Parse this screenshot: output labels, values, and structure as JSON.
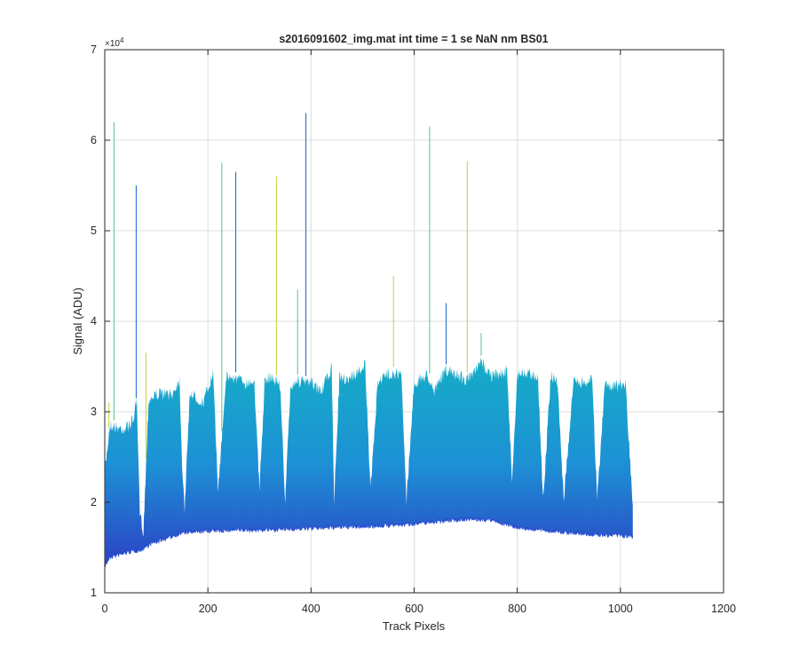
{
  "chart_data": {
    "type": "area",
    "title": "s2016091602_img.mat int time = 1 se  NaN nm BS01",
    "xlabel": "Track Pixels",
    "ylabel": "Signal (ADU)",
    "xlim": [
      0,
      1200
    ],
    "ylim": [
      10000,
      70000
    ],
    "x_ticks": [
      0,
      200,
      400,
      600,
      800,
      1000,
      1200
    ],
    "y_ticks": [
      10000,
      20000,
      30000,
      40000,
      50000,
      60000,
      70000
    ],
    "x_tick_labels": [
      "0",
      "200",
      "400",
      "600",
      "800",
      "1000",
      "1200"
    ],
    "y_tick_labels": [
      "1",
      "2",
      "3",
      "4",
      "5",
      "6",
      "7"
    ],
    "y_exponent_label": "×10",
    "y_exponent_power": "4",
    "grid": true,
    "x_range": [
      1,
      1024
    ],
    "series": [
      {
        "kind": "lower_envelope",
        "x": [
          1,
          10,
          30,
          50,
          70,
          90,
          120,
          150,
          200,
          250,
          300,
          350,
          400,
          450,
          500,
          550,
          600,
          650,
          700,
          750,
          780,
          800,
          850,
          900,
          950,
          1000,
          1024
        ],
        "values": [
          13300,
          14200,
          14500,
          14800,
          15000,
          15700,
          16300,
          16900,
          17100,
          17200,
          17200,
          17300,
          17400,
          17500,
          17600,
          17700,
          17900,
          18200,
          18400,
          18300,
          17800,
          17500,
          17200,
          16900,
          16700,
          16600,
          16400
        ]
      },
      {
        "kind": "upper_envelope",
        "x": [
          1,
          10,
          20,
          40,
          55,
          62,
          68,
          75,
          85,
          100,
          130,
          145,
          150,
          155,
          165,
          190,
          200,
          210,
          220,
          235,
          260,
          275,
          290,
          300,
          310,
          320,
          340,
          350,
          360,
          370,
          380,
          400,
          420,
          440,
          445,
          455,
          470,
          490,
          505,
          515,
          530,
          555,
          575,
          585,
          600,
          625,
          640,
          660,
          675,
          690,
          700,
          715,
          730,
          750,
          765,
          780,
          790,
          800,
          820,
          840,
          850,
          865,
          878,
          890,
          910,
          930,
          945,
          955,
          970,
          990,
          1010,
          1024
        ],
        "values": [
          24500,
          29300,
          29000,
          28800,
          29800,
          31800,
          19500,
          17400,
          32000,
          32700,
          32600,
          34200,
          25000,
          20000,
          32800,
          31700,
          33200,
          34800,
          22000,
          34600,
          34300,
          33900,
          34200,
          22000,
          33700,
          34700,
          33700,
          20800,
          33200,
          34200,
          34000,
          33900,
          33000,
          35500,
          21000,
          34400,
          34300,
          35000,
          36000,
          22000,
          34200,
          35000,
          34800,
          21000,
          33800,
          34800,
          33000,
          35300,
          34900,
          34700,
          34200,
          34800,
          36200,
          34700,
          34800,
          35200,
          23000,
          34900,
          34900,
          34700,
          20900,
          34700,
          34000,
          21000,
          34300,
          33900,
          34400,
          21000,
          33900,
          33500,
          33800,
          20000
        ]
      }
    ],
    "spikes": [
      {
        "x": 8,
        "y": 31000
      },
      {
        "x": 18,
        "y": 62000
      },
      {
        "x": 61,
        "y": 55000
      },
      {
        "x": 80,
        "y": 36500
      },
      {
        "x": 227,
        "y": 57500
      },
      {
        "x": 254,
        "y": 56500
      },
      {
        "x": 333,
        "y": 56000
      },
      {
        "x": 374,
        "y": 43500
      },
      {
        "x": 390,
        "y": 63000
      },
      {
        "x": 560,
        "y": 45000
      },
      {
        "x": 630,
        "y": 61500
      },
      {
        "x": 662,
        "y": 42000
      },
      {
        "x": 703,
        "y": 57700
      },
      {
        "x": 730,
        "y": 38700
      }
    ],
    "colors": {
      "fill_top": "#13b3c4",
      "fill_mid": "#1d91d5",
      "fill_bottom": "#2c3fc4",
      "spike_yellow": "#c9d34f",
      "spike_green": "#67c49a",
      "spike_blue": "#2b6dd2",
      "grid": "#dcdcdc",
      "axis": "#262626"
    }
  }
}
